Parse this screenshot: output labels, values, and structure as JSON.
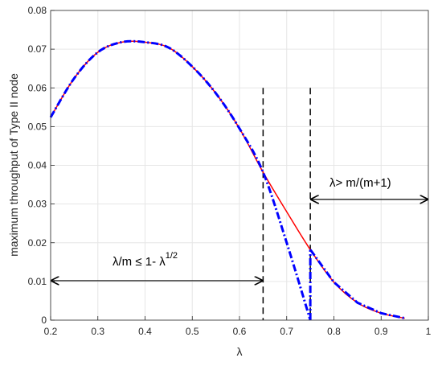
{
  "chart_data": {
    "type": "line",
    "xlabel": "λ",
    "ylabel": "maximum throughput of Type II node",
    "xlim": [
      0.2,
      1.0
    ],
    "ylim": [
      0,
      0.08
    ],
    "x_ticks": [
      "0.2",
      "0.3",
      "0.4",
      "0.5",
      "0.6",
      "0.7",
      "0.8",
      "0.9",
      "1"
    ],
    "y_ticks": [
      "0",
      "0.01",
      "0.02",
      "0.03",
      "0.04",
      "0.05",
      "0.06",
      "0.07",
      "0.08"
    ],
    "grid": true,
    "colors": {
      "red": "#ff0000",
      "blue": "#0000ff",
      "black": "#000000",
      "grid": "#e6e6e6"
    },
    "series": [
      {
        "style": "solid",
        "color": "#ff0000",
        "x": [
          0.2,
          0.25,
          0.3,
          0.35,
          0.4,
          0.45,
          0.5,
          0.55,
          0.6,
          0.65,
          0.7,
          0.75,
          0.8,
          0.85,
          0.9,
          0.95
        ],
        "y": [
          0.0524,
          0.0625,
          0.0692,
          0.0718,
          0.0718,
          0.0704,
          0.0655,
          0.0586,
          0.0495,
          0.0382,
          0.028,
          0.0182,
          0.0098,
          0.0045,
          0.0018,
          0.0005
        ]
      },
      {
        "style": "dash-dot",
        "color": "#0000ff",
        "x": [
          0.2,
          0.25,
          0.3,
          0.35,
          0.4,
          0.45,
          0.5,
          0.55,
          0.6,
          0.65,
          0.7,
          0.75,
          0.75,
          0.8,
          0.85,
          0.9,
          0.95
        ],
        "y": [
          0.0524,
          0.0625,
          0.0692,
          0.0718,
          0.0718,
          0.0704,
          0.0655,
          0.0586,
          0.0495,
          0.0382,
          0.02,
          0.0,
          0.0182,
          0.0098,
          0.0045,
          0.0018,
          0.0005
        ]
      }
    ],
    "vlines": [
      0.65,
      0.75
    ],
    "vline_ymax": 0.06,
    "annotations": [
      {
        "text_main": "λ/m ≤ 1- λ",
        "superscript": "1/2",
        "arrow_x": [
          0.2,
          0.65
        ],
        "y": 0.0102
      },
      {
        "text": "λ> m/(m+1)",
        "arrow_x": [
          0.75,
          1.0
        ],
        "y": 0.0312
      }
    ]
  }
}
